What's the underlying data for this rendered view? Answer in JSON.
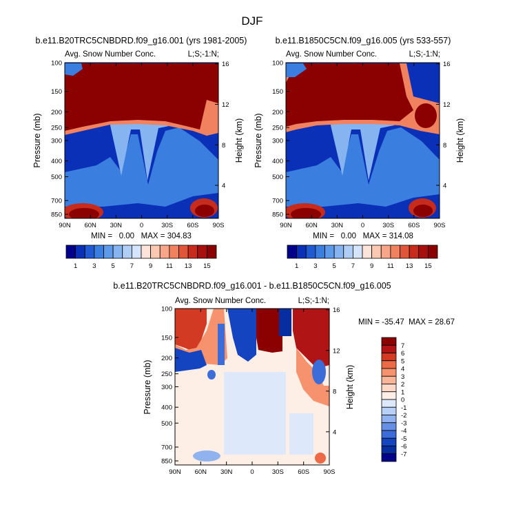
{
  "figure_title": "DJF",
  "chart_data": [
    {
      "type": "heatmap",
      "id": "panel-1",
      "title": "b.e11.B20TRC5CNBDRD.f09_g16.001 (yrs 1981-2005)",
      "variable": "Avg. Snow Number Conc.",
      "corner_label": "L;S;-1:N;",
      "xlabel": "",
      "ylabel": "Pressure (mb)",
      "ylabel_right": "Height (km)",
      "x_ticks": [
        "90N",
        "60N",
        "30N",
        "0",
        "30S",
        "60S",
        "90S"
      ],
      "x_range": [
        90,
        -90
      ],
      "y_ticks": [
        "100",
        "150",
        "200",
        "250",
        "300",
        "400",
        "500",
        "700",
        "850"
      ],
      "y_range": [
        100,
        900
      ],
      "y_ticks_right": [
        "16",
        "12",
        "8",
        "4"
      ],
      "min": "0.00",
      "max": "304.83",
      "stats_text": "MIN =   0.00   MAX = 304.83",
      "colorbar_labels": [
        "1",
        "3",
        "5",
        "7",
        "9",
        "11",
        "13",
        "15"
      ]
    },
    {
      "type": "heatmap",
      "id": "panel-2",
      "title": "b.e11.B1850C5CN.f09_g16.005 (yrs 533-557)",
      "variable": "Avg. Snow Number Conc.",
      "corner_label": "L;S;-1:N;",
      "xlabel": "",
      "ylabel": "Pressure (mb)",
      "ylabel_right": "Height (km)",
      "x_ticks": [
        "90N",
        "60N",
        "30N",
        "0",
        "30S",
        "60S",
        "90S"
      ],
      "x_range": [
        90,
        -90
      ],
      "y_ticks": [
        "100",
        "150",
        "200",
        "250",
        "300",
        "400",
        "500",
        "700",
        "850"
      ],
      "y_range": [
        100,
        900
      ],
      "y_ticks_right": [
        "16",
        "12",
        "8",
        "4"
      ],
      "min": "0.00",
      "max": "314.08",
      "stats_text": "MIN =   0.00   MAX = 314.08",
      "colorbar_labels": [
        "1",
        "3",
        "5",
        "7",
        "9",
        "11",
        "13",
        "15"
      ]
    },
    {
      "type": "heatmap",
      "id": "panel-diff",
      "title": "b.e11.B20TRC5CNBDRD.f09_g16.001 - b.e11.B1850C5CN.f09_g16.005",
      "variable": "Avg. Snow Number Conc.",
      "corner_label": "L;S;-1:N;",
      "xlabel": "",
      "ylabel": "Pressure (mb)",
      "ylabel_right": "Height (km)",
      "x_ticks": [
        "90N",
        "60N",
        "30N",
        "0",
        "30S",
        "60S",
        "90S"
      ],
      "x_range": [
        90,
        -90
      ],
      "y_ticks": [
        "100",
        "150",
        "200",
        "250",
        "300",
        "400",
        "500",
        "700",
        "850"
      ],
      "y_range": [
        100,
        900
      ],
      "y_ticks_right": [
        "16",
        "12",
        "8",
        "4"
      ],
      "min": "-35.47",
      "max": "28.67",
      "stats_text": "MIN = -35.47  MAX = 28.67",
      "colorbar_labels": [
        "7",
        "6",
        "5",
        "4",
        "3",
        "2",
        "1",
        "0",
        "-1",
        "-2",
        "-3",
        "-4",
        "-5",
        "-6",
        "-7"
      ]
    }
  ],
  "colors": {
    "seq": [
      "#00008b",
      "#0a30b8",
      "#1f5ad2",
      "#3a7ee0",
      "#5e9aea",
      "#86b4f0",
      "#b0cef5",
      "#d4e4fa",
      "#fde4d8",
      "#fbc8b2",
      "#f7a68a",
      "#f0825f",
      "#e0553a",
      "#c72b1c",
      "#a81010",
      "#8b0000"
    ],
    "div": [
      "#8b0000",
      "#b01414",
      "#d23a24",
      "#ec6a45",
      "#f6926e",
      "#fab598",
      "#fdd8c6",
      "#fdeee6",
      "#dde9fb",
      "#b8d0f6",
      "#90b2ef",
      "#6590e5",
      "#3b6cd8",
      "#1444c0",
      "#062ea0",
      "#00008b"
    ]
  }
}
